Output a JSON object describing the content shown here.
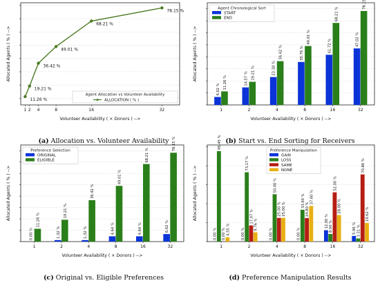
{
  "chart_data": [
    {
      "type": "line",
      "caption_letter": "(a)",
      "caption_text": "Allocation vs. Volunteer Availability",
      "xlabel": "Volunteer Availability ( × Donors ) -->",
      "ylabel": "Allocated Agents ( % ) -->",
      "x": [
        1,
        2,
        4,
        8,
        16,
        32
      ],
      "x_ticks": [
        "1",
        "2",
        "4",
        "8",
        "16",
        "32"
      ],
      "xlim": [
        0,
        36
      ],
      "ylim": [
        5,
        82
      ],
      "grid": true,
      "series": [
        {
          "name": "ALLOCATION ( % )",
          "color": "#4a7a22",
          "values": [
            11.26,
            19.21,
            36.42,
            49.01,
            68.21,
            78.15
          ],
          "labels": [
            "11.26 %",
            "19.21 %",
            "36.42 %",
            "49.01 %",
            "68.21 %",
            "78.15 %"
          ]
        }
      ],
      "legend_title": "Agent Allocation vs Volunteer Availability",
      "legend_position": "lower-right"
    },
    {
      "type": "bar",
      "caption_letter": "(b)",
      "caption_text": "Start vs. End Sorting for Receivers",
      "xlabel": "Volunteer Availability ( × Donors ) -->",
      "ylabel": "Allocated Agents ( % ) -->",
      "categories": [
        "1",
        "2",
        "4",
        "8",
        "16",
        "32"
      ],
      "ylim": [
        0,
        85
      ],
      "grid": true,
      "series": [
        {
          "name": "START",
          "color": "#0a34d8",
          "values": [
            6.62,
            14.57,
            23.18,
            35.76,
            41.72,
            47.02
          ],
          "labels": [
            "6.62 %",
            "14.57 %",
            "23.18 %",
            "35.76 %",
            "41.72 %",
            "47.02 %"
          ]
        },
        {
          "name": "END",
          "color": "#2a7f1a",
          "values": [
            11.26,
            19.21,
            36.42,
            49.01,
            68.21,
            78.15
          ],
          "labels": [
            "11.26 %",
            "19.21 %",
            "36.42 %",
            "49.01 %",
            "68.21 %",
            "78.15 %"
          ]
        }
      ],
      "legend_title": "Agent Chronological Sort",
      "legend_position": "top-left"
    },
    {
      "type": "bar",
      "caption_letter": "(c)",
      "caption_text": "Original vs. Eligible Preferences",
      "xlabel": "Volunteer Availability ( × Donors ) -->",
      "ylabel": "Allocated Agents ( % ) -->",
      "categories": [
        "1",
        "2",
        "4",
        "8",
        "16",
        "32"
      ],
      "ylim": [
        0,
        85
      ],
      "grid": true,
      "series": [
        {
          "name": "ORIGINAL",
          "color": "#0a34d8",
          "values": [
            0.0,
            1.32,
            1.32,
            4.64,
            4.64,
            6.62
          ],
          "labels": [
            "0.00 %",
            "1.32 %",
            "1.32 %",
            "4.64 %",
            "4.64 %",
            "6.62 %"
          ]
        },
        {
          "name": "ELIGIBLE",
          "color": "#2a7f1a",
          "values": [
            11.26,
            19.21,
            36.42,
            49.01,
            68.21,
            78.15
          ],
          "labels": [
            "11.26 %",
            "19.21 %",
            "36.42 %",
            "49.01 %",
            "68.21 %",
            "78.15 %"
          ]
        }
      ],
      "legend_title": "Preference Selection",
      "legend_position": "top-left"
    },
    {
      "type": "bar",
      "caption_letter": "(d)",
      "caption_text": "Preference Manipulation Results",
      "xlabel": "Volunteer Availability ( × Donors ) -->",
      "ylabel": "Allocated Agents ( % ) -->",
      "categories": [
        "1",
        "2",
        "4",
        "8",
        "16",
        "32"
      ],
      "ylim": [
        0,
        102
      ],
      "grid": true,
      "series": [
        {
          "name": "GAIN",
          "color": "#0a34d8",
          "values": [
            0.0,
            0.0,
            0.0,
            0.0,
            12.0,
            5.96
          ],
          "labels": [
            "0.00 %",
            "0.00 %",
            "0.00 %",
            "0.00 %",
            "12.00 %",
            "5.96 %"
          ]
        },
        {
          "name": "LOSS",
          "color": "#2a7f1a",
          "values": [
            95.45,
            73.17,
            50.0,
            33.6,
            8.0,
            3.31
          ],
          "labels": [
            "95.45 %",
            "73.17 %",
            "50.00 %",
            "33.60 %",
            "8.00 %",
            "3.31 %"
          ]
        },
        {
          "name": "SAME",
          "color": "#b51e14",
          "values": [
            0.0,
            17.07,
            25.0,
            24.8,
            52.0,
            70.86
          ],
          "labels": [
            "0.00 %",
            "17.07 %",
            "25.00 %",
            "24.80 %",
            "52.00 %",
            "70.86 %"
          ]
        },
        {
          "name": "NONE",
          "color": "#e8b013",
          "values": [
            4.55,
            9.76,
            25.0,
            37.6,
            28.0,
            19.62
          ],
          "labels": [
            "4.55 %",
            "9.76 %",
            "25.00 %",
            "37.60 %",
            "28.00 %",
            "19.62 %"
          ]
        }
      ],
      "legend_title": "Preference Manipulation",
      "legend_position": "top-right"
    }
  ]
}
